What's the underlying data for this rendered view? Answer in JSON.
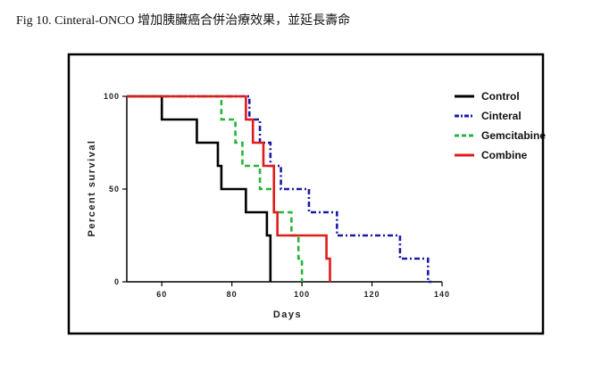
{
  "caption": "Fig 10. Cinteral-ONCO 增加胰臟癌合併治療效果，並延長壽命",
  "chart_data": {
    "type": "line",
    "step": true,
    "xlabel": "Days",
    "ylabel": "Percent survival",
    "xlim": [
      50,
      140
    ],
    "ylim": [
      0,
      100
    ],
    "xticks": [
      60,
      80,
      100,
      120,
      140
    ],
    "yticks": [
      0,
      50,
      100
    ],
    "grid": false,
    "legend_position": "right",
    "series": [
      {
        "name": "Control",
        "color": "#000000",
        "dash": "solid",
        "x": [
          50,
          60,
          70,
          76,
          77,
          78,
          84,
          90,
          91
        ],
        "y": [
          100,
          87.5,
          75,
          62.5,
          50,
          50,
          37.5,
          25,
          0
        ]
      },
      {
        "name": "Cinteral",
        "color": "#1a1aa6",
        "dash": "dashdot",
        "x": [
          50,
          85,
          88,
          91,
          94,
          102,
          110,
          128,
          136,
          137
        ],
        "y": [
          100,
          87.5,
          75,
          62.5,
          50,
          37.5,
          25,
          12.5,
          0,
          0
        ]
      },
      {
        "name": "Gemcitabine",
        "color": "#27b43a",
        "dash": "dashed",
        "x": [
          50,
          77,
          81,
          83,
          88,
          92,
          97,
          99,
          100
        ],
        "y": [
          100,
          87.5,
          75,
          62.5,
          50,
          37.5,
          25,
          12.5,
          0
        ]
      },
      {
        "name": "Combine",
        "color": "#e01b1b",
        "dash": "solid",
        "x": [
          50,
          84,
          86,
          89,
          92,
          93,
          107,
          108
        ],
        "y": [
          100,
          87.5,
          75,
          62.5,
          37.5,
          25,
          12.5,
          0
        ]
      }
    ]
  }
}
